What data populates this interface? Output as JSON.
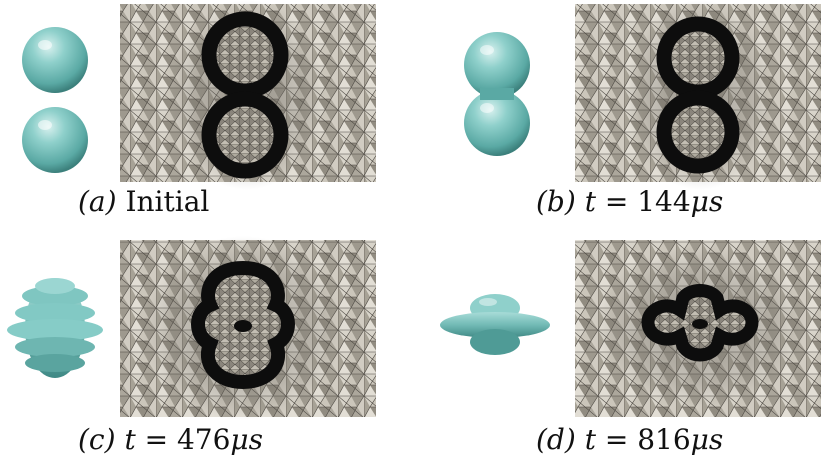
{
  "figure": {
    "panels": [
      {
        "id": "a",
        "label": "(a)",
        "caption_text": "Initial",
        "math": "",
        "value": "",
        "unit": ""
      },
      {
        "id": "b",
        "label": "(b)",
        "caption_text": "",
        "math": "t =",
        "value": "144",
        "unit": "μs"
      },
      {
        "id": "c",
        "label": "(c)",
        "caption_text": "",
        "math": "t =",
        "value": "476",
        "unit": "μs"
      },
      {
        "id": "d",
        "label": "(d)",
        "caption_text": "",
        "math": "t =",
        "value": "816",
        "unit": "μs"
      }
    ],
    "colors": {
      "droplet_teal": "#7cc4c0",
      "droplet_shadow": "#3f8a86",
      "mesh_light": "#c9c4b8",
      "mesh_dark": "#8a857b",
      "interface_black": "#0d0d0d"
    }
  }
}
